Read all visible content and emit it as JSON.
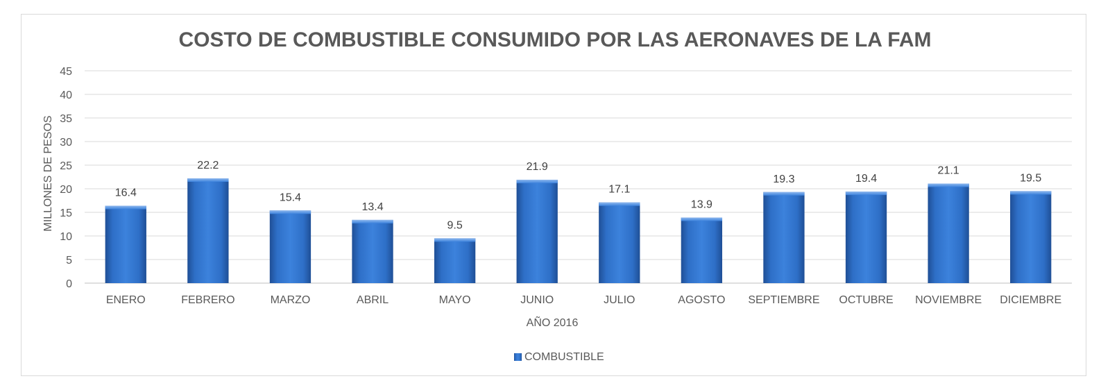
{
  "chart_data": {
    "type": "bar",
    "title": "COSTO DE COMBUSTIBLE CONSUMIDO POR LAS AERONAVES DE LA FAM",
    "xlabel": "AÑO 2016",
    "ylabel": "MILLONES DE PESOS",
    "categories": [
      "ENERO",
      "FEBRERO",
      "MARZO",
      "ABRIL",
      "MAYO",
      "JUNIO",
      "JULIO",
      "AGOSTO",
      "SEPTIEMBRE",
      "OCTUBRE",
      "NOVIEMBRE",
      "DICIEMBRE"
    ],
    "series": [
      {
        "name": "COMBUSTIBLE",
        "values": [
          16.4,
          22.2,
          15.4,
          13.4,
          9.5,
          21.9,
          17.1,
          13.9,
          19.3,
          19.4,
          21.1,
          19.5
        ],
        "color": "#2e6fc7"
      }
    ],
    "ylim": [
      0,
      45
    ],
    "yticks": [
      0,
      5,
      10,
      15,
      20,
      25,
      30,
      35,
      40,
      45
    ],
    "grid": true,
    "legend_position": "bottom",
    "data_labels": true
  }
}
